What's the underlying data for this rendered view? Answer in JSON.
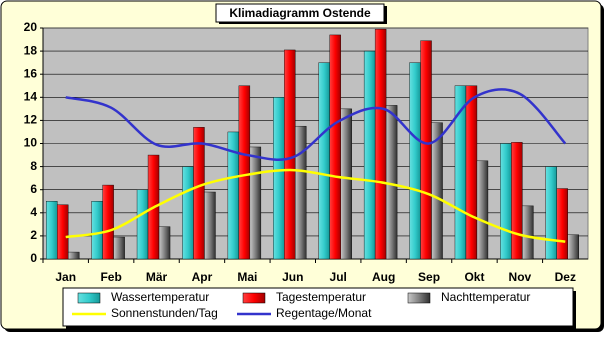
{
  "chart_data": {
    "type": "bar",
    "title": "Klimadiagramm Ostende",
    "categories": [
      "Jan",
      "Feb",
      "Mär",
      "Apr",
      "Mai",
      "Jun",
      "Jul",
      "Aug",
      "Sep",
      "Okt",
      "Nov",
      "Dez"
    ],
    "series": [
      {
        "name": "Wassertemperatur",
        "type": "bar",
        "color": "#33cccc",
        "values": [
          5,
          5,
          6,
          8,
          11,
          14,
          17,
          18,
          17,
          15,
          10,
          8
        ]
      },
      {
        "name": "Tagestemperatur",
        "type": "bar",
        "color": "#ff0000",
        "values": [
          4.7,
          6.4,
          9,
          11.4,
          15,
          18.1,
          19.4,
          19.9,
          18.9,
          15,
          10.1,
          6.1
        ]
      },
      {
        "name": "Nachttemperatur",
        "type": "bar",
        "color": "#808080",
        "values": [
          0.6,
          1.9,
          2.8,
          5.8,
          9.7,
          11.5,
          13,
          13.3,
          11.8,
          8.5,
          4.6,
          2.1
        ]
      },
      {
        "name": "Sonnenstunden/Tag",
        "type": "line",
        "color": "#ffff00",
        "values": [
          1.9,
          2.5,
          4.6,
          6.4,
          7.3,
          7.7,
          7.1,
          6.6,
          5.6,
          3.6,
          2.1,
          1.5
        ]
      },
      {
        "name": "Regentage/Monat",
        "type": "line",
        "color": "#3333cc",
        "values": [
          14,
          13.1,
          9.9,
          10,
          9,
          8.8,
          11.9,
          13,
          10,
          14,
          14.3,
          10
        ]
      }
    ],
    "ylim": [
      0,
      20
    ],
    "yticks": [
      0,
      2,
      4,
      6,
      8,
      10,
      12,
      14,
      16,
      18,
      20
    ],
    "grid": true
  }
}
